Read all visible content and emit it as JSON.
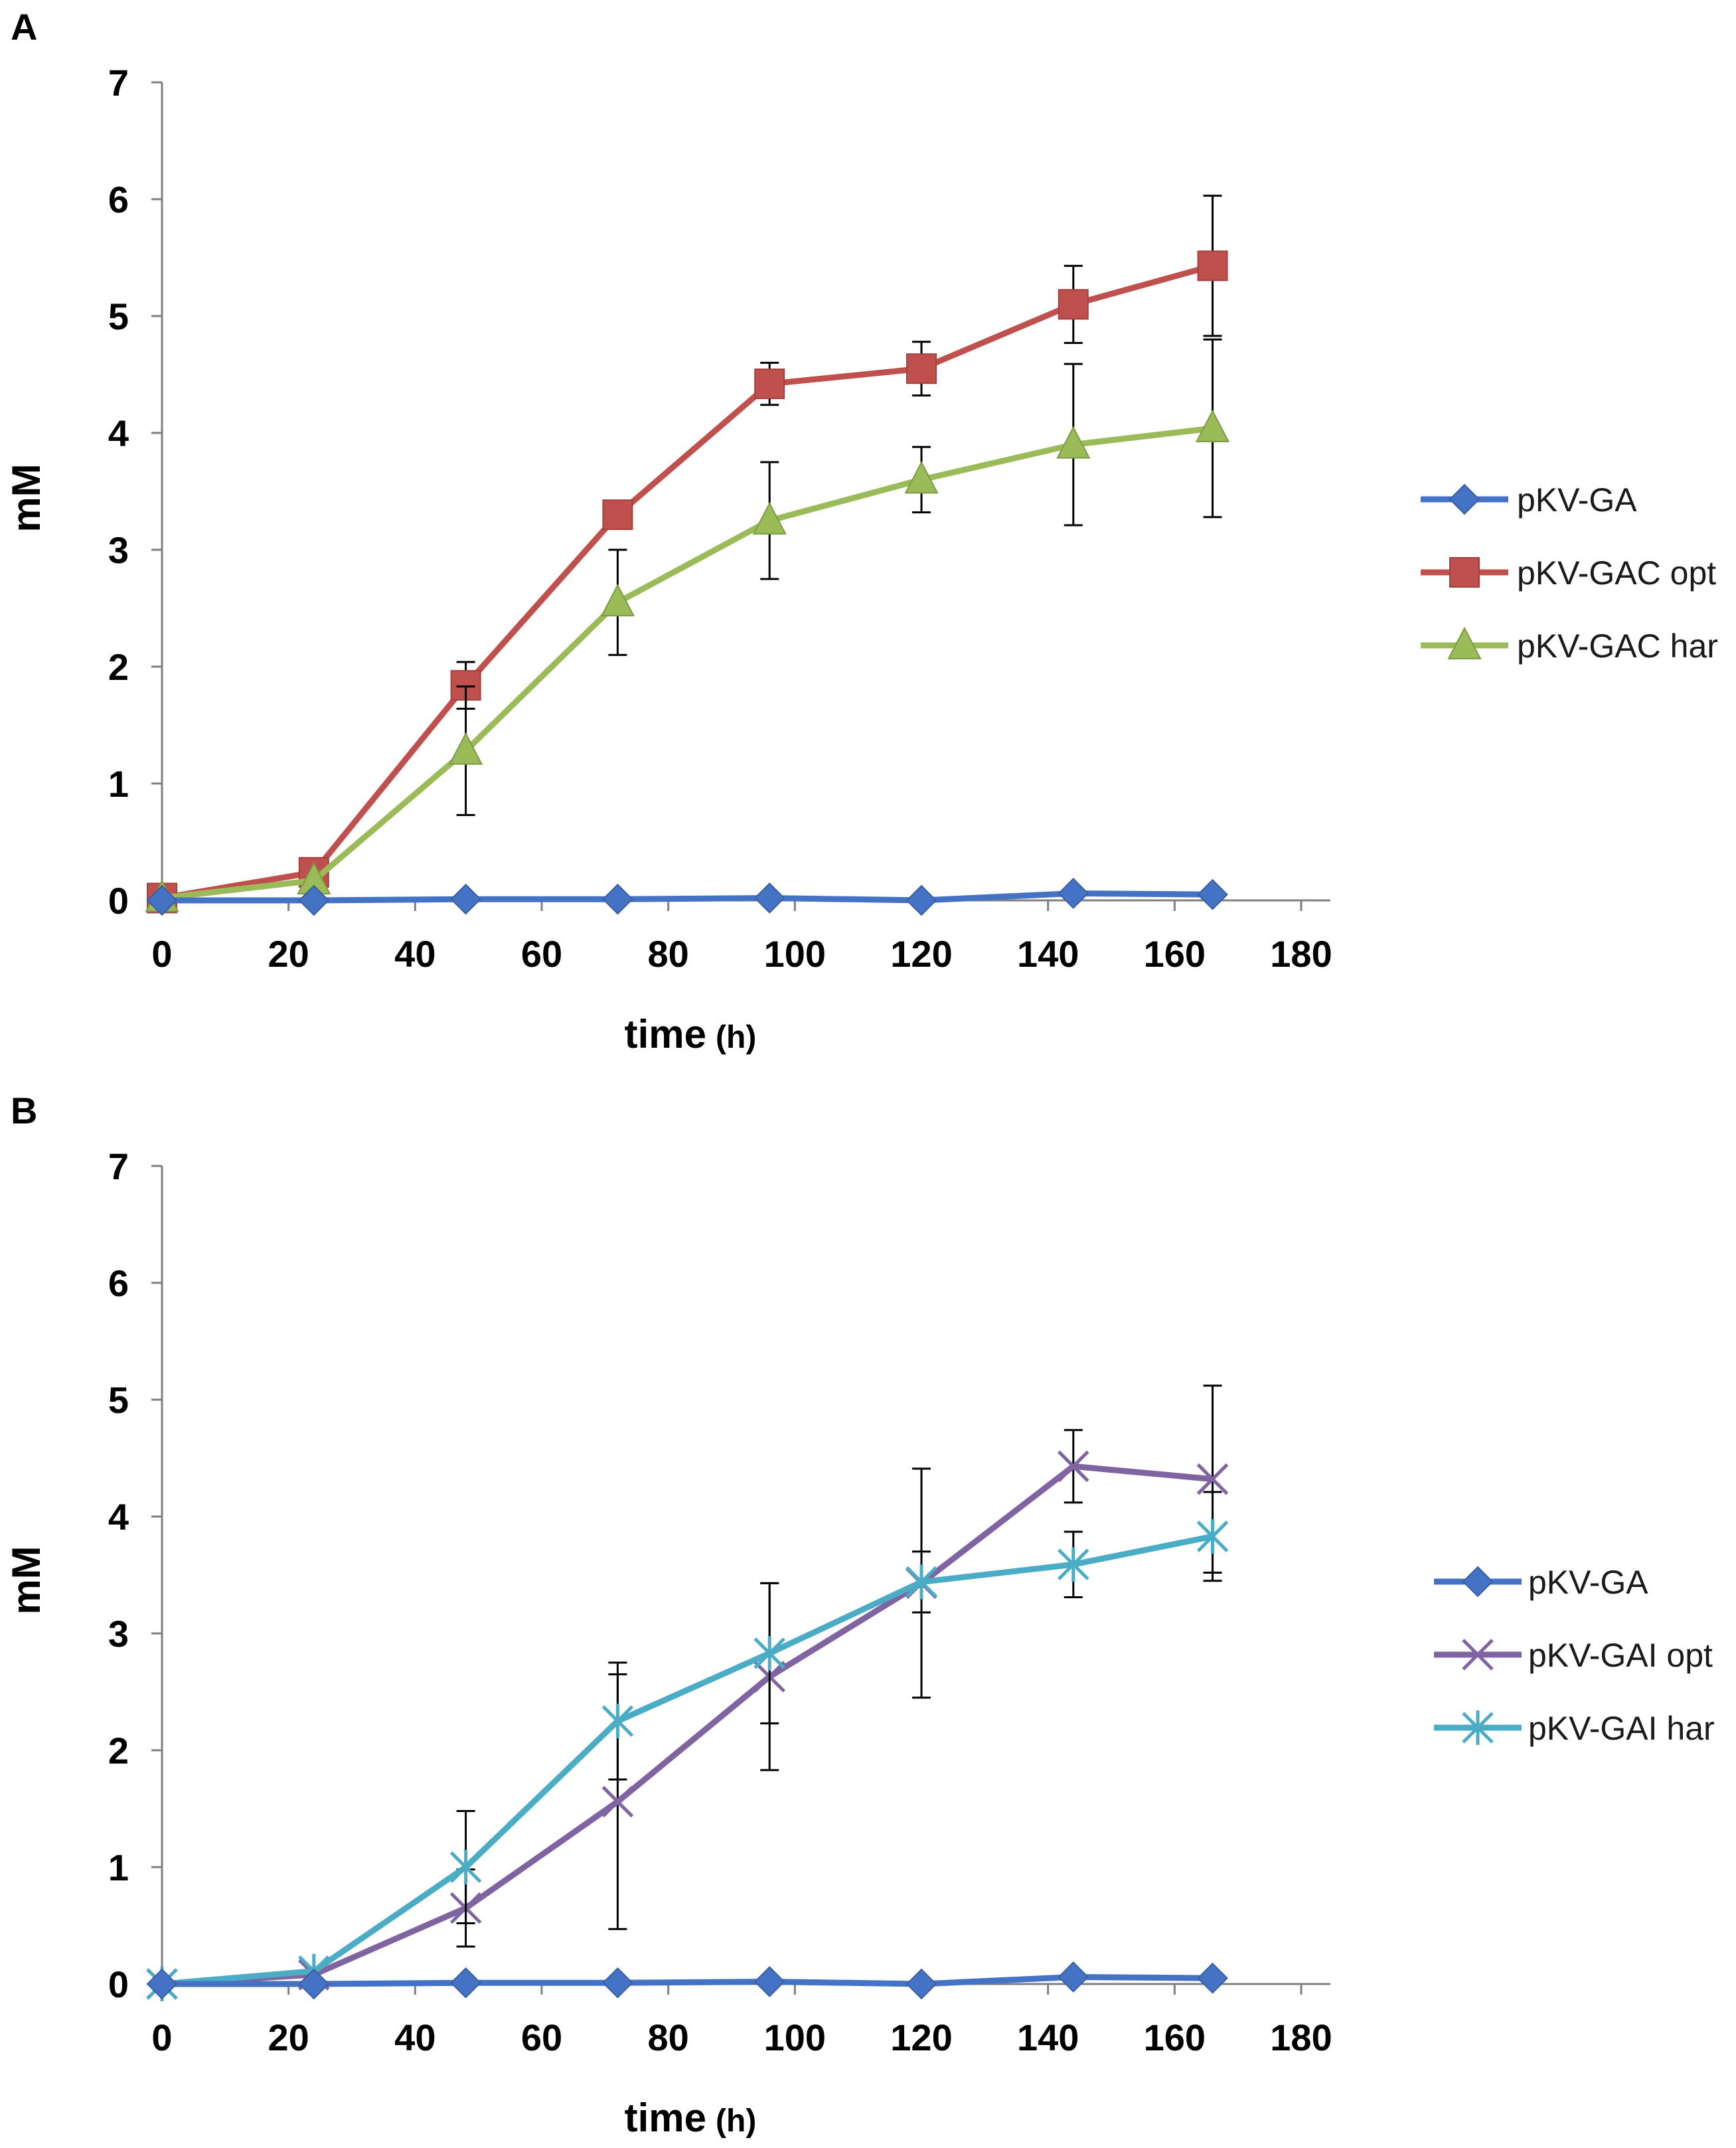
{
  "chart_data": [
    {
      "type": "line",
      "panel": "A",
      "xlabel": "time",
      "xunit": "(h)",
      "ylabel": "mM",
      "xlim": [
        0,
        180
      ],
      "ylim": [
        0,
        7
      ],
      "xticks": [
        "0",
        "20",
        "40",
        "60",
        "80",
        "100",
        "120",
        "140",
        "160",
        "180"
      ],
      "yticks": [
        "0",
        "1",
        "2",
        "3",
        "4",
        "5",
        "6",
        "7"
      ],
      "series": [
        {
          "name": "pKV-GA",
          "color": "#4472c4",
          "marker": "diamond",
          "x": [
            0,
            24,
            48,
            72,
            96,
            120,
            144,
            166
          ],
          "values": [
            0.0,
            0.0,
            0.01,
            0.01,
            0.02,
            0.0,
            0.06,
            0.05
          ],
          "error": null
        },
        {
          "name": "pKV-GAC opt",
          "color": "#c0504d",
          "marker": "square",
          "x": [
            0,
            24,
            48,
            72,
            96,
            120,
            144,
            166
          ],
          "values": [
            0.02,
            0.24,
            1.84,
            3.3,
            4.42,
            4.55,
            5.1,
            5.43
          ],
          "error": [
            0.0,
            0.0,
            0.2,
            0.0,
            0.18,
            0.23,
            0.33,
            0.6
          ]
        },
        {
          "name": "pKV-GAC har",
          "color": "#9bbb59",
          "marker": "triangle",
          "x": [
            0,
            24,
            48,
            72,
            96,
            120,
            144,
            166
          ],
          "values": [
            0.02,
            0.17,
            1.28,
            2.55,
            3.25,
            3.6,
            3.9,
            4.04
          ],
          "error": [
            0.0,
            0.0,
            0.55,
            0.45,
            0.5,
            0.28,
            0.69,
            0.76
          ]
        }
      ]
    },
    {
      "type": "line",
      "panel": "B",
      "xlabel": "time",
      "xunit": "(h)",
      "ylabel": "mM",
      "xlim": [
        0,
        180
      ],
      "ylim": [
        0,
        7
      ],
      "xticks": [
        "0",
        "20",
        "40",
        "60",
        "80",
        "100",
        "120",
        "140",
        "160",
        "180"
      ],
      "yticks": [
        "0",
        "1",
        "2",
        "3",
        "4",
        "5",
        "6",
        "7"
      ],
      "series": [
        {
          "name": "pKV-GA",
          "color": "#4472c4",
          "marker": "diamond",
          "x": [
            0,
            24,
            48,
            72,
            96,
            120,
            144,
            166
          ],
          "values": [
            0.0,
            0.0,
            0.01,
            0.01,
            0.02,
            0.0,
            0.06,
            0.05
          ],
          "error": null
        },
        {
          "name": "pKV-GAI opt",
          "color": "#8064a2",
          "marker": "x",
          "x": [
            0,
            24,
            48,
            72,
            96,
            120,
            144,
            166
          ],
          "values": [
            0.0,
            0.08,
            0.65,
            1.56,
            2.63,
            3.43,
            4.43,
            4.32
          ],
          "error": [
            0.0,
            0.0,
            0.33,
            1.09,
            0.8,
            0.98,
            0.31,
            0.8
          ]
        },
        {
          "name": "pKV-GAI har",
          "color": "#4bacc6",
          "marker": "asterisk",
          "x": [
            0,
            24,
            48,
            72,
            96,
            120,
            144,
            166
          ],
          "values": [
            0.0,
            0.11,
            1.0,
            2.25,
            2.83,
            3.44,
            3.59,
            3.83
          ],
          "error": [
            0.0,
            0.0,
            0.48,
            0.5,
            0.6,
            0.26,
            0.28,
            0.38
          ]
        }
      ]
    }
  ]
}
